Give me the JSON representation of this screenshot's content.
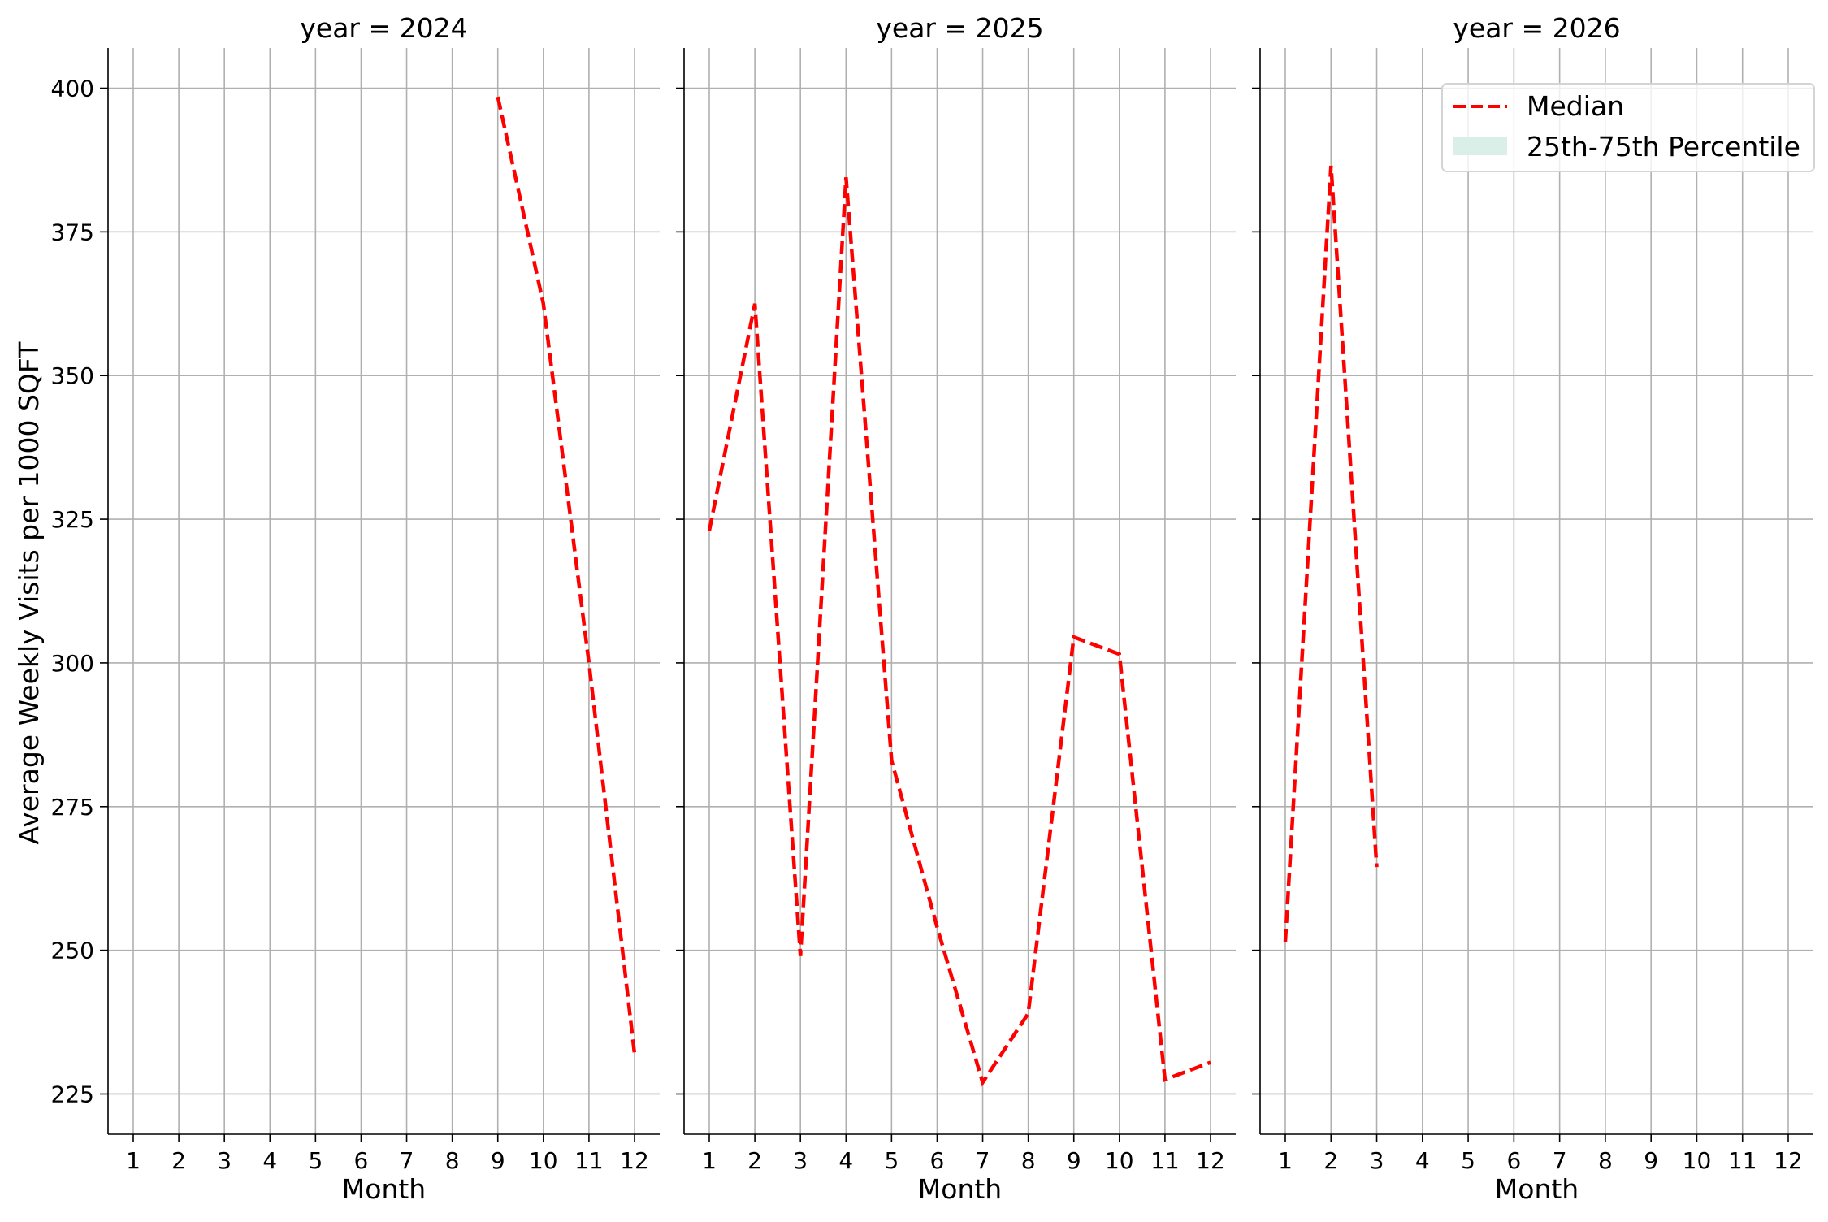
{
  "figure": {
    "ylabel": "Average Weekly Visits per 1000 SQFT",
    "xlabel": "Month"
  },
  "legend": {
    "placement": "top-right",
    "items": [
      {
        "label": "Median",
        "style": "dashed-line",
        "color": "#ff0000"
      },
      {
        "label": "25th-75th Percentile",
        "style": "patch",
        "color": "#d9efe8"
      }
    ]
  },
  "chart_data": [
    {
      "type": "line",
      "title": "year = 2024",
      "xlabel": "Month",
      "ylabel": "Average Weekly Visits per 1000 SQFT",
      "x_ticks": [
        "1",
        "2",
        "3",
        "4",
        "5",
        "6",
        "7",
        "8",
        "9",
        "10",
        "11",
        "12"
      ],
      "y_ticks": [
        "225",
        "250",
        "275",
        "300",
        "325",
        "350",
        "375",
        "400"
      ],
      "ylim": [
        218,
        407
      ],
      "grid": true,
      "series": [
        {
          "name": "Median",
          "color": "#ff0000",
          "x": [
            9,
            10,
            11,
            12
          ],
          "values": [
            398.5,
            362.5,
            300,
            232
          ]
        }
      ]
    },
    {
      "type": "line",
      "title": "year = 2025",
      "xlabel": "Month",
      "x_ticks": [
        "1",
        "2",
        "3",
        "4",
        "5",
        "6",
        "7",
        "8",
        "9",
        "10",
        "11",
        "12"
      ],
      "ylim": [
        218,
        407
      ],
      "grid": true,
      "series": [
        {
          "name": "Median",
          "color": "#ff0000",
          "x": [
            1,
            2,
            3,
            4,
            5,
            6,
            7,
            8,
            9,
            10,
            11,
            12
          ],
          "values": [
            323,
            362.5,
            249,
            384.5,
            283,
            254,
            227,
            239,
            304.5,
            301.5,
            227.5,
            230.5
          ]
        }
      ]
    },
    {
      "type": "line",
      "title": "year = 2026",
      "xlabel": "Month",
      "x_ticks": [
        "1",
        "2",
        "3",
        "4",
        "5",
        "6",
        "7",
        "8",
        "9",
        "10",
        "11",
        "12"
      ],
      "ylim": [
        218,
        407
      ],
      "grid": true,
      "series": [
        {
          "name": "Median",
          "color": "#ff0000",
          "x": [
            1,
            2,
            3
          ],
          "values": [
            251.5,
            386.5,
            264.5
          ]
        }
      ]
    }
  ]
}
